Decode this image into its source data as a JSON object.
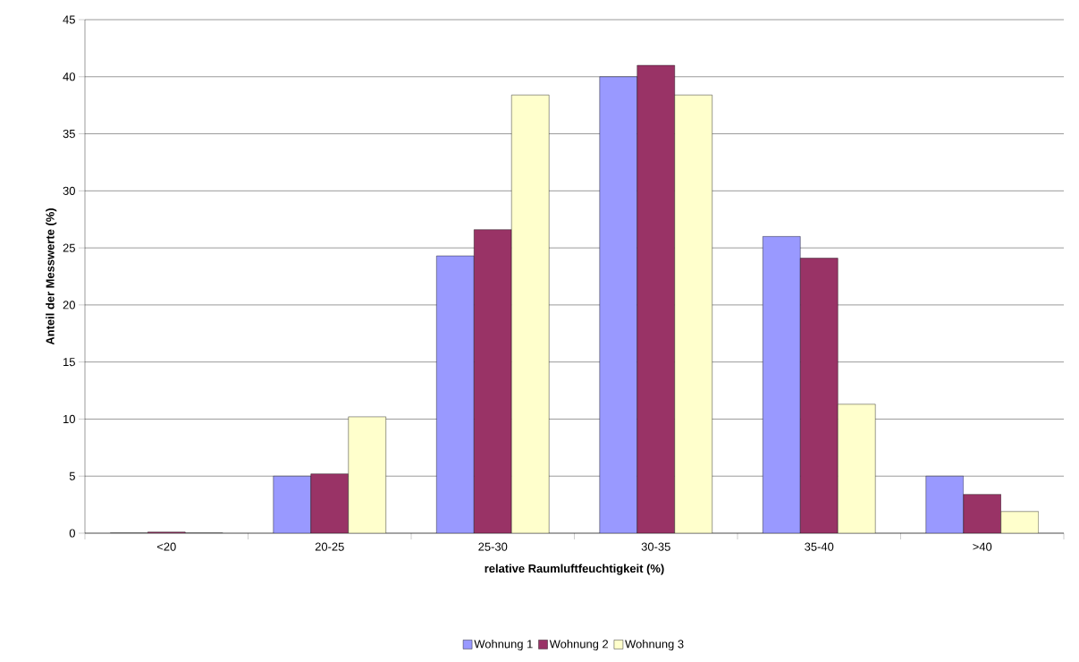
{
  "chart_data": {
    "type": "bar",
    "xlabel": "relative Raumluftfeuchtigkeit (%)",
    "ylabel": "Anteil der Messwerte (%)",
    "categories": [
      "<20",
      "20-25",
      "25-30",
      "30-35",
      "35-40",
      ">40"
    ],
    "series": [
      {
        "name": "Wohnung 1",
        "color": "#9999ff",
        "values": [
          0,
          5.0,
          24.3,
          40.0,
          26.0,
          5.0
        ]
      },
      {
        "name": "Wohnung 2",
        "color": "#993366",
        "values": [
          0.1,
          5.2,
          26.6,
          41.0,
          24.1,
          3.4
        ]
      },
      {
        "name": "Wohnung 3",
        "color": "#ffffcc",
        "values": [
          0,
          10.2,
          38.4,
          38.4,
          11.3,
          1.9
        ]
      }
    ],
    "ylim": [
      0,
      45
    ],
    "yticks": [
      0,
      5,
      10,
      15,
      20,
      25,
      30,
      35,
      40,
      45
    ],
    "grid": "y",
    "legend": "bottom"
  }
}
